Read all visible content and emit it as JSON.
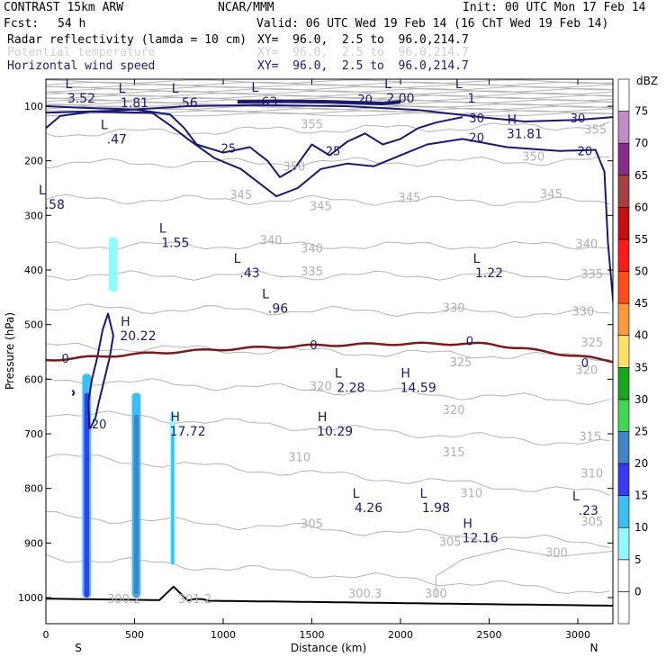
{
  "header": {
    "model": "CONTRAST 15km ARW",
    "org": "NCAR/MMM",
    "init": "Init: 00 UTC Mon 17 Feb 14",
    "fcst_label": "Fcst:",
    "fcst_value": "54 h",
    "valid": "Valid: 06 UTC Wed 19 Feb 14 (16 ChT Wed 19 Feb 14)",
    "fields": [
      {
        "name": "Radar reflectivity (lamda = 10 cm)",
        "xy": "XY=  96.0,  2.5 to  96.0,214.7"
      },
      {
        "name": "Potential temperature",
        "xy": "XY=  96.0,  2.5 to  96.0,214.7"
      },
      {
        "name": "Horizontal wind speed",
        "xy": "XY=  96.0,  2.5 to  96.0,214.7"
      }
    ]
  },
  "colors": {
    "wind_contour": "#191970",
    "theta_contour": "#b4b4b4",
    "freezing_line": "#7b1a1a"
  },
  "chart_data": {
    "type": "cross-section",
    "xlabel": "Distance (km)",
    "ylabel": "Pressure (hPa)",
    "x_ticks": [
      0,
      500,
      1000,
      1500,
      2000,
      2500,
      3000
    ],
    "y_ticks": [
      100,
      200,
      300,
      400,
      500,
      600,
      700,
      800,
      900,
      1000
    ],
    "xlim": [
      0,
      3200
    ],
    "ylim": [
      1050,
      50
    ],
    "end_labels": {
      "left": "S",
      "right": "N"
    },
    "theta_labels": [
      {
        "text": "355",
        "x": 1500,
        "p": 140
      },
      {
        "text": "355",
        "x": 3100,
        "p": 150
      },
      {
        "text": "350",
        "x": 1400,
        "p": 218
      },
      {
        "text": "350",
        "x": 2750,
        "p": 200
      },
      {
        "text": "345",
        "x": 1100,
        "p": 270
      },
      {
        "text": "345",
        "x": 1550,
        "p": 290
      },
      {
        "text": "345",
        "x": 2050,
        "p": 275
      },
      {
        "text": "345",
        "x": 2850,
        "p": 268
      },
      {
        "text": "340",
        "x": 1270,
        "p": 353
      },
      {
        "text": "340",
        "x": 1500,
        "p": 368
      },
      {
        "text": "340",
        "x": 3050,
        "p": 360
      },
      {
        "text": "335",
        "x": 1500,
        "p": 410
      },
      {
        "text": "335",
        "x": 3080,
        "p": 415
      },
      {
        "text": "330",
        "x": 2300,
        "p": 477
      },
      {
        "text": "330",
        "x": 3030,
        "p": 483
      },
      {
        "text": "325",
        "x": 3080,
        "p": 540
      },
      {
        "text": "325",
        "x": 2340,
        "p": 576
      },
      {
        "text": "320",
        "x": 1550,
        "p": 620
      },
      {
        "text": "320",
        "x": 2300,
        "p": 664
      },
      {
        "text": "320",
        "x": 3050,
        "p": 590
      },
      {
        "text": "315",
        "x": 3070,
        "p": 712
      },
      {
        "text": "315",
        "x": 2300,
        "p": 741
      },
      {
        "text": "310",
        "x": 1430,
        "p": 750
      },
      {
        "text": "310",
        "x": 2400,
        "p": 816
      },
      {
        "text": "310",
        "x": 3080,
        "p": 780
      },
      {
        "text": "305",
        "x": 1500,
        "p": 872
      },
      {
        "text": "305",
        "x": 2280,
        "p": 905
      },
      {
        "text": "305",
        "x": 3080,
        "p": 868
      },
      {
        "text": "300",
        "x": 2880,
        "p": 925
      },
      {
        "text": "300",
        "x": 2200,
        "p": 1000
      },
      {
        "text": "300.3",
        "x": 1800,
        "p": 1000
      },
      {
        "text": "300.2",
        "x": 440,
        "p": 1010
      },
      {
        "text": "301.2",
        "x": 840,
        "p": 1010
      }
    ],
    "wind_labels": [
      {
        "text": "25",
        "x": 1030,
        "p": 185
      },
      {
        "text": "25",
        "x": 1620,
        "p": 190
      },
      {
        "text": "20",
        "x": 1800,
        "p": 95
      },
      {
        "text": "20",
        "x": 2430,
        "p": 165
      },
      {
        "text": "20",
        "x": 3040,
        "p": 190
      },
      {
        "text": "30",
        "x": 2430,
        "p": 130
      },
      {
        "text": "30",
        "x": 3000,
        "p": 130
      },
      {
        "text": "20",
        "x": 300,
        "p": 690
      },
      {
        "text": "0",
        "x": 110,
        "p": 570
      },
      {
        "text": "0",
        "x": 1510,
        "p": 545
      },
      {
        "text": "0",
        "x": 2390,
        "p": 538
      },
      {
        "text": "0",
        "x": 3040,
        "p": 578
      }
    ],
    "extrema": [
      {
        "type": "L",
        "value": "3.52",
        "x": 200,
        "p": 90
      },
      {
        "type": "L",
        "value": "1.81",
        "x": 500,
        "p": 98
      },
      {
        "type": "L",
        "value": ".56",
        "x": 800,
        "p": 98
      },
      {
        "type": "L",
        "value": ".63",
        "x": 1250,
        "p": 97
      },
      {
        "type": "L",
        "value": "2.00",
        "x": 2000,
        "p": 90
      },
      {
        "type": "L",
        "value": "1",
        "x": 2400,
        "p": 90
      },
      {
        "type": "L",
        "value": ".47",
        "x": 400,
        "p": 165
      },
      {
        "type": "H",
        "value": "31.81",
        "x": 2700,
        "p": 155
      },
      {
        "type": "L",
        "value": ".58",
        "x": 50,
        "p": 285
      },
      {
        "type": "L",
        "value": "1.55",
        "x": 730,
        "p": 355
      },
      {
        "type": "L",
        "value": ".43",
        "x": 1150,
        "p": 410
      },
      {
        "type": "L",
        "value": "1.22",
        "x": 2500,
        "p": 410
      },
      {
        "type": "L",
        "value": ".96",
        "x": 1310,
        "p": 475
      },
      {
        "type": "H",
        "value": "20.22",
        "x": 520,
        "p": 525
      },
      {
        "type": "L",
        "value": "2.28",
        "x": 1720,
        "p": 620
      },
      {
        "type": "H",
        "value": "14.59",
        "x": 2100,
        "p": 620
      },
      {
        "type": "H",
        "value": "17.72",
        "x": 800,
        "p": 700
      },
      {
        "type": "H",
        "value": "10.29",
        "x": 1630,
        "p": 700
      },
      {
        "type": "L",
        "value": "4.26",
        "x": 1820,
        "p": 840
      },
      {
        "type": "L",
        "value": "1.98",
        "x": 2200,
        "p": 840
      },
      {
        "type": "L",
        "value": ".23",
        "x": 3060,
        "p": 845
      },
      {
        "type": "H",
        "value": "12.16",
        "x": 2450,
        "p": 895
      }
    ],
    "colorbar": {
      "title": "dBZ",
      "levels": [
        -5,
        0,
        5,
        10,
        15,
        20,
        25,
        30,
        35,
        40,
        45,
        50,
        55,
        60,
        65,
        70,
        75
      ],
      "tick_labels": [
        "0",
        "5",
        "10",
        "15",
        "20",
        "25",
        "30",
        "35",
        "40",
        "45",
        "50",
        "55",
        "60",
        "65",
        "70",
        "75"
      ],
      "colors": [
        "#ffffff",
        "#ffffff",
        "#8ffbff",
        "#3cbff5",
        "#3a3af5",
        "#3e86c6",
        "#3fd94f",
        "#1aa81a",
        "#ffe066",
        "#ff9a3c",
        "#ff4d1a",
        "#ff1a1a",
        "#c80f0f",
        "#a84040",
        "#8a2a8a",
        "#c38ac8",
        "#ffffff"
      ]
    },
    "reflectivity_columns": [
      {
        "x_center": 230,
        "x_half_width": 25,
        "p_top": 590,
        "p_bottom": 1000,
        "core_dbz": 15,
        "core_top": 625,
        "edge_dbz": 10
      },
      {
        "x_center": 510,
        "x_half_width": 25,
        "p_top": 625,
        "p_bottom": 1000,
        "core_dbz": 20,
        "core_top": 665,
        "edge_dbz": 10
      },
      {
        "x_center": 715,
        "x_half_width": 15,
        "p_top": 660,
        "p_bottom": 940,
        "core_dbz": 10,
        "core_top": 700,
        "edge_dbz": 5
      },
      {
        "x_center": 380,
        "x_half_width": 25,
        "p_top": 340,
        "p_bottom": 440,
        "core_dbz": 5,
        "core_top": 360,
        "edge_dbz": 5
      }
    ]
  }
}
